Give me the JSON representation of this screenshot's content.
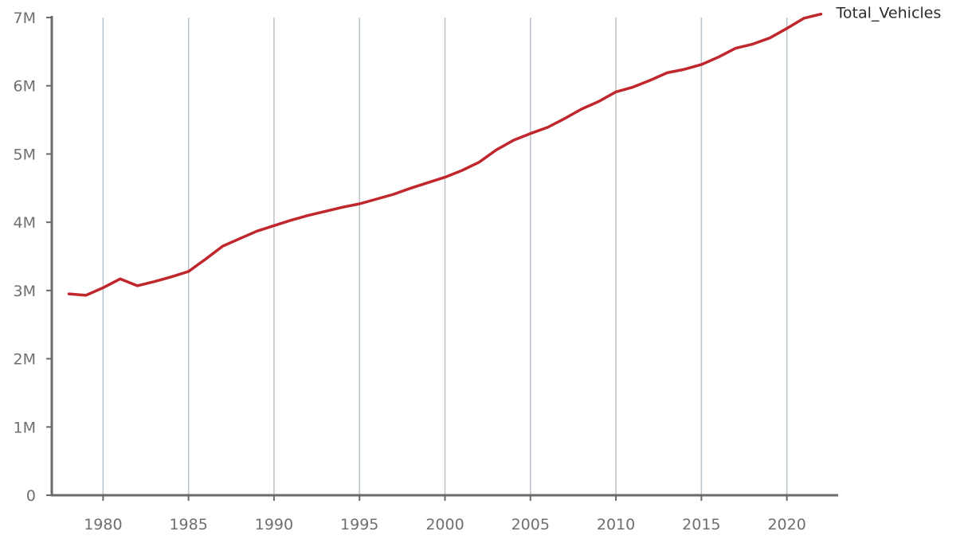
{
  "chart_data": {
    "type": "line",
    "title": "",
    "xlabel": "",
    "ylabel": "",
    "grid": "vertical",
    "xlim": [
      1977,
      2023
    ],
    "ylim": [
      0,
      7000000
    ],
    "x_ticks": [
      1980,
      1985,
      1990,
      1995,
      2000,
      2005,
      2010,
      2015,
      2020
    ],
    "x_tick_labels": [
      "1980",
      "1985",
      "1990",
      "1995",
      "2000",
      "2005",
      "2010",
      "2015",
      "2020"
    ],
    "y_ticks": [
      0,
      1000000,
      2000000,
      3000000,
      4000000,
      5000000,
      6000000,
      7000000
    ],
    "y_tick_labels": [
      "0",
      "1M",
      "2M",
      "3M",
      "4M",
      "5M",
      "6M",
      "7M"
    ],
    "series": [
      {
        "name": "Total_Vehicles",
        "color": "#c0272d",
        "x": [
          1978,
          1979,
          1980,
          1981,
          1982,
          1983,
          1984,
          1985,
          1986,
          1987,
          1988,
          1989,
          1990,
          1991,
          1992,
          1993,
          1994,
          1995,
          1996,
          1997,
          1998,
          1999,
          2000,
          2001,
          2002,
          2003,
          2004,
          2005,
          2006,
          2007,
          2008,
          2009,
          2010,
          2011,
          2012,
          2013,
          2014,
          2015,
          2016,
          2017,
          2018,
          2019,
          2020,
          2021,
          2022
        ],
        "values": [
          2950000,
          2930000,
          3040000,
          3170000,
          3070000,
          3130000,
          3200000,
          3280000,
          3460000,
          3650000,
          3760000,
          3870000,
          3950000,
          4030000,
          4100000,
          4160000,
          4220000,
          4270000,
          4340000,
          4410000,
          4500000,
          4580000,
          4660000,
          4760000,
          4880000,
          5060000,
          5200000,
          5300000,
          5390000,
          5520000,
          5660000,
          5770000,
          5910000,
          5980000,
          6080000,
          6190000,
          6240000,
          6310000,
          6420000,
          6550000,
          6610000,
          6700000,
          6840000,
          6990000,
          7050000
        ]
      }
    ]
  }
}
